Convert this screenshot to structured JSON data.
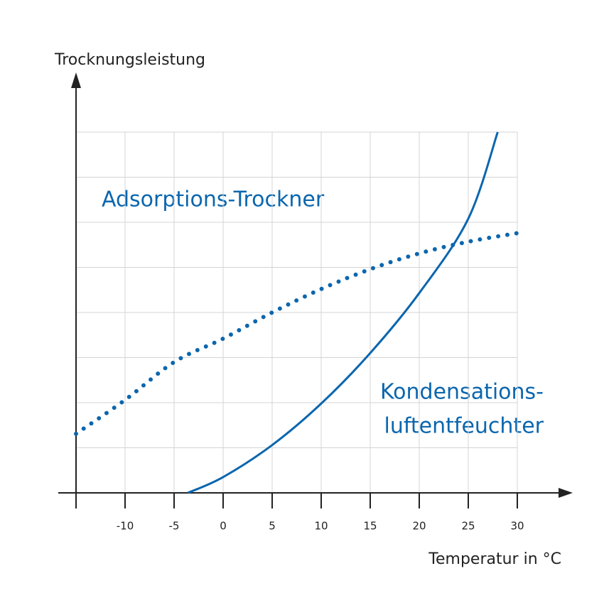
{
  "chart_data": {
    "type": "line",
    "y_label": "Trocknungsleistung",
    "x_label": "Temperatur in °C",
    "annotations": [
      "Adsorptions-Trockner",
      "Kondensations-",
      "luftentfeuchter"
    ],
    "xlim": [
      -15,
      30
    ],
    "xticks": [
      -10,
      -5,
      0,
      5,
      10,
      15,
      20,
      25,
      30
    ],
    "ylim": [
      0,
      8
    ],
    "ygrid": [
      1,
      2,
      3,
      4,
      5,
      6,
      7,
      8
    ],
    "grid": true,
    "series": [
      {
        "style": "dotted",
        "color": "#0b66ae",
        "x": [
          -15,
          -10,
          -5,
          0,
          5,
          10,
          15,
          20,
          25,
          30
        ],
        "values": [
          1.31,
          2.06,
          2.9,
          3.42,
          4.0,
          4.52,
          4.96,
          5.31,
          5.57,
          5.76
        ]
      },
      {
        "style": "solid",
        "color": "#0b66ae",
        "x": [
          -3.6,
          0,
          5,
          10,
          15,
          20,
          25,
          28
        ],
        "values": [
          0,
          0.35,
          1.06,
          1.98,
          3.1,
          4.43,
          6.08,
          8.0
        ]
      }
    ]
  }
}
